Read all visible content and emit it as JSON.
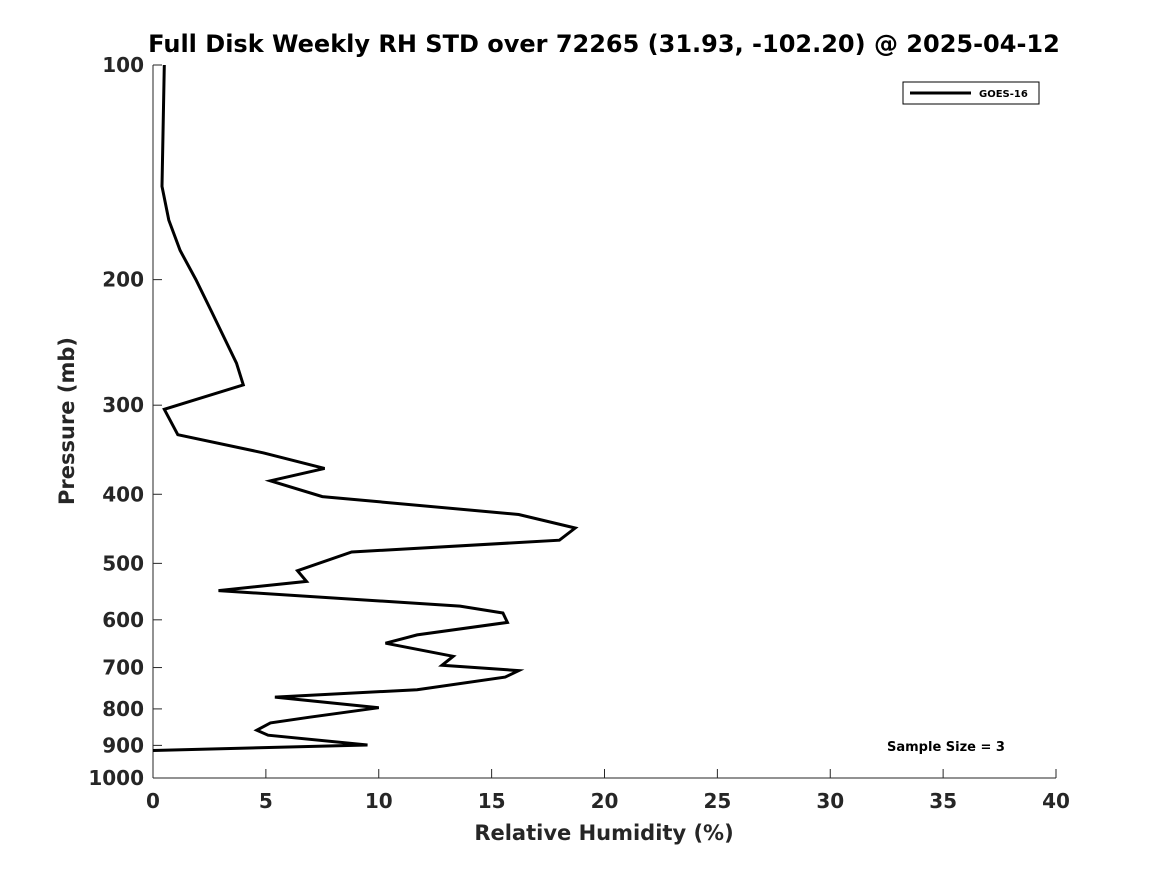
{
  "chart_data": {
    "type": "line",
    "title": "Full Disk Weekly RH STD over 72265 (31.93, -102.20) @ 2025-04-12",
    "xlabel": "Relative Humidity (%)",
    "ylabel": "Pressure (mb)",
    "xlim": [
      0,
      40
    ],
    "ylim": [
      100,
      1000
    ],
    "yscale": "log",
    "yreversed": true,
    "x_ticks": [
      0,
      5,
      10,
      15,
      20,
      25,
      30,
      35,
      40
    ],
    "x_tick_labels": [
      "0",
      "5",
      "10",
      "15",
      "20",
      "25",
      "30",
      "35",
      "40"
    ],
    "y_ticks": [
      100,
      200,
      300,
      400,
      500,
      600,
      700,
      800,
      900,
      1000
    ],
    "y_tick_labels": [
      "100",
      "200",
      "300",
      "400",
      "500",
      "600",
      "700",
      "800",
      "900",
      "1000"
    ],
    "legend_position": "top-right",
    "series": [
      {
        "name": "GOES-16",
        "color": "#000000",
        "x": [
          0.5,
          0.4,
          0.7,
          1.2,
          1.9,
          2.6,
          3.7,
          4.0,
          0.5,
          1.1,
          4.9,
          7.6,
          5.2,
          7.5,
          16.2,
          18.7,
          18.0,
          8.8,
          6.4,
          6.8,
          2.9,
          13.6,
          15.5,
          15.7,
          11.7,
          10.3,
          13.3,
          12.8,
          16.2,
          15.6,
          11.7,
          5.4,
          10.0,
          6.9,
          5.2,
          4.6,
          5.1,
          9.5,
          0.0
        ],
        "y": [
          100,
          148,
          165,
          182,
          200,
          222,
          262,
          281,
          304,
          330,
          350,
          368,
          383,
          403,
          427,
          446,
          464,
          482,
          512,
          530,
          546,
          574,
          587,
          605,
          630,
          647,
          675,
          695,
          707,
          722,
          752,
          770,
          797,
          822,
          837,
          857,
          871,
          899,
          915
        ]
      }
    ],
    "annotations": [
      {
        "text": "Sample Size = 3",
        "position": "bottom-right"
      }
    ]
  }
}
